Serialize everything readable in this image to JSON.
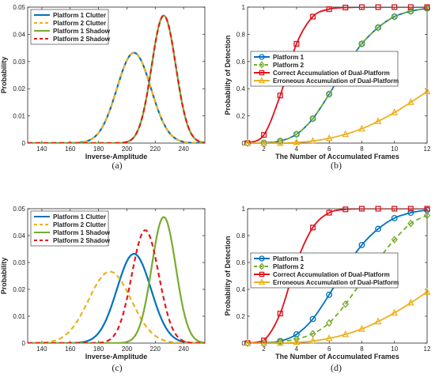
{
  "colors": {
    "blue": "#0072BD",
    "orange": "#EDB120",
    "green": "#77AC30",
    "red": "#E0111A",
    "redline": "#E51A1A",
    "axis": "#262626"
  },
  "captions": [
    "(a)",
    "(b)",
    "(c)",
    "(d)"
  ],
  "chart_data": [
    {
      "type": "line",
      "panel": "a",
      "xlabel": "Inverse-Amplitude",
      "ylabel": "Probability",
      "xlim": [
        130,
        255
      ],
      "ylim": [
        0,
        0.05
      ],
      "xticks": [
        "140",
        "160",
        "180",
        "200",
        "220",
        "240"
      ],
      "yticks": [
        "0",
        "0.01",
        "0.02",
        "0.03",
        "0.04",
        "0.05"
      ],
      "legend_pos": "top-left",
      "series": [
        {
          "name": "Platform 1 Clutter",
          "color": "#0072BD",
          "style": "solid",
          "mean": 205,
          "std": 12,
          "peak": 0.0332
        },
        {
          "name": "Platform 2 Clutter",
          "color": "#EDB120",
          "style": "dashed",
          "mean": 205,
          "std": 12,
          "peak": 0.0332
        },
        {
          "name": "Platform 1 Shadow",
          "color": "#77AC30",
          "style": "solid",
          "mean": 226,
          "std": 8.5,
          "peak": 0.0469
        },
        {
          "name": "Platform 2 Shadow",
          "color": "#E51A1A",
          "style": "dashed",
          "mean": 226,
          "std": 8.5,
          "peak": 0.0469
        }
      ]
    },
    {
      "type": "line",
      "panel": "b",
      "xlabel": "The Number of Accumulated Frames",
      "ylabel": "Probability of Detection",
      "xlim": [
        1,
        12
      ],
      "ylim": [
        0,
        1
      ],
      "xticks": [
        "2",
        "4",
        "6",
        "8",
        "10",
        "12"
      ],
      "yticks": [
        "0",
        "0.2",
        "0.4",
        "0.6",
        "0.8",
        "1"
      ],
      "legend_pos": "middle-left",
      "x": [
        1,
        2,
        3,
        4,
        5,
        6,
        7,
        8,
        9,
        10,
        11,
        12
      ],
      "series": [
        {
          "name": "Platform 1",
          "color": "#0072BD",
          "style": "solid",
          "marker": "circle",
          "values": [
            0,
            0.002,
            0.015,
            0.065,
            0.18,
            0.36,
            0.56,
            0.73,
            0.85,
            0.93,
            0.97,
            0.99
          ]
        },
        {
          "name": "Platform 2",
          "color": "#77AC30",
          "style": "dashed",
          "marker": "diamond",
          "values": [
            0,
            0.002,
            0.015,
            0.065,
            0.18,
            0.36,
            0.56,
            0.73,
            0.85,
            0.93,
            0.97,
            0.99
          ]
        },
        {
          "name": "Correct Accumulation of Dual-Platform",
          "color": "#E0111A",
          "style": "solid",
          "marker": "square",
          "values": [
            0,
            0.06,
            0.35,
            0.73,
            0.93,
            0.985,
            0.997,
            1,
            1,
            1,
            1,
            1
          ]
        },
        {
          "name": "Erroneous Accumulation of Dual-Platform",
          "color": "#EDB120",
          "style": "solid",
          "marker": "triangle",
          "values": [
            0,
            0,
            0,
            0.005,
            0.015,
            0.035,
            0.065,
            0.105,
            0.16,
            0.225,
            0.3,
            0.38
          ]
        }
      ]
    },
    {
      "type": "line",
      "panel": "c",
      "xlabel": "Inverse-Amplitude",
      "ylabel": "Probability",
      "xlim": [
        130,
        255
      ],
      "ylim": [
        0,
        0.05
      ],
      "xticks": [
        "140",
        "160",
        "180",
        "200",
        "220",
        "240"
      ],
      "yticks": [
        "0",
        "0.01",
        "0.02",
        "0.03",
        "0.04",
        "0.05"
      ],
      "legend_pos": "top-left",
      "series": [
        {
          "name": "Platform 1 Clutter",
          "color": "#0072BD",
          "style": "solid",
          "mean": 205,
          "std": 12,
          "peak": 0.0332
        },
        {
          "name": "Platform 2 Clutter",
          "color": "#EDB120",
          "style": "dashed",
          "mean": 188,
          "std": 15,
          "peak": 0.0266
        },
        {
          "name": "Platform 1 Shadow",
          "color": "#77AC30",
          "style": "solid",
          "mean": 226,
          "std": 8.5,
          "peak": 0.0469
        },
        {
          "name": "Platform 2 Shadow",
          "color": "#E51A1A",
          "style": "dashed",
          "mean": 213,
          "std": 9.5,
          "peak": 0.042
        }
      ]
    },
    {
      "type": "line",
      "panel": "d",
      "xlabel": "The Number of Accumulated Frames",
      "ylabel": "Probability of Detection",
      "xlim": [
        1,
        12
      ],
      "ylim": [
        0,
        1
      ],
      "xticks": [
        "2",
        "4",
        "6",
        "8",
        "10",
        "12"
      ],
      "yticks": [
        "0",
        "0.2",
        "0.4",
        "0.6",
        "0.8",
        "1"
      ],
      "legend_pos": "middle-left",
      "x": [
        1,
        2,
        3,
        4,
        5,
        6,
        7,
        8,
        9,
        10,
        11,
        12
      ],
      "series": [
        {
          "name": "Platform 1",
          "color": "#0072BD",
          "style": "solid",
          "marker": "circle",
          "values": [
            0,
            0.002,
            0.015,
            0.065,
            0.18,
            0.36,
            0.56,
            0.73,
            0.85,
            0.93,
            0.97,
            0.99
          ]
        },
        {
          "name": "Platform 2",
          "color": "#77AC30",
          "style": "dashed",
          "marker": "diamond",
          "values": [
            0,
            0.001,
            0.01,
            0.03,
            0.07,
            0.15,
            0.29,
            0.46,
            0.62,
            0.77,
            0.89,
            0.95
          ]
        },
        {
          "name": "Correct Accumulation of Dual-Platform",
          "color": "#E0111A",
          "style": "solid",
          "marker": "square",
          "values": [
            0,
            0.02,
            0.22,
            0.6,
            0.86,
            0.97,
            0.995,
            1,
            1,
            1,
            1,
            1
          ]
        },
        {
          "name": "Erroneous Accumulation of Dual-Platform",
          "color": "#EDB120",
          "style": "solid",
          "marker": "triangle",
          "values": [
            0,
            0,
            0,
            0.005,
            0.015,
            0.035,
            0.065,
            0.105,
            0.16,
            0.225,
            0.3,
            0.38
          ]
        }
      ]
    }
  ]
}
